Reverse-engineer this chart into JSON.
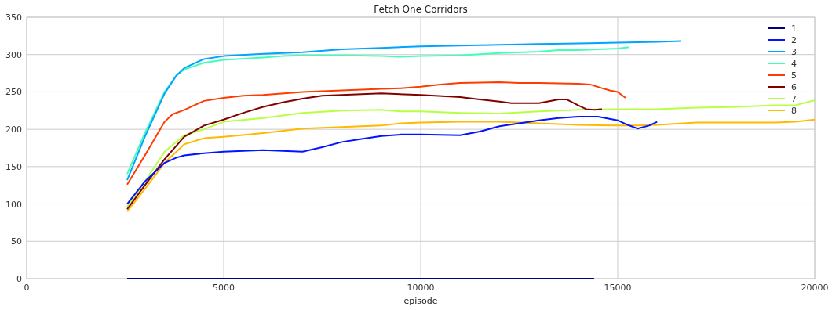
{
  "chart_data": {
    "type": "line",
    "title": "Fetch One Corridors",
    "xlabel": "episode",
    "xlim": [
      0,
      20000
    ],
    "xticks": [
      0,
      5000,
      10000,
      15000,
      20000
    ],
    "ylim": [
      0,
      350
    ],
    "yticks": [
      0,
      50,
      100,
      150,
      200,
      250,
      300,
      350
    ],
    "grid": true,
    "legend": "top right",
    "marker": "none",
    "line_style": "solid",
    "series": [
      {
        "name": "1",
        "color": "#000080",
        "x": [
          2550,
          5000,
          8000,
          11000,
          13500,
          14400
        ],
        "values": [
          0,
          0,
          0,
          0,
          0,
          0
        ]
      },
      {
        "name": "2",
        "color": "#0014ff",
        "x": [
          2550,
          3000,
          3500,
          3800,
          4000,
          4500,
          5000,
          6000,
          7000,
          7500,
          8000,
          8500,
          9000,
          9500,
          10000,
          11000,
          11500,
          12000,
          12500,
          13000,
          13500,
          14000,
          14500,
          15000,
          15200,
          15500,
          15800,
          16000
        ],
        "values": [
          100,
          130,
          155,
          162,
          165,
          168,
          170,
          172,
          170,
          176,
          183,
          187,
          191,
          193,
          193,
          192,
          197,
          204,
          208,
          212,
          215,
          217,
          217,
          212,
          207,
          201,
          205,
          210
        ]
      },
      {
        "name": "3",
        "color": "#00a4ff",
        "x": [
          2550,
          3000,
          3500,
          3800,
          4000,
          4500,
          5000,
          6000,
          7000,
          8000,
          9000,
          10000,
          11000,
          12000,
          13000,
          14000,
          15000,
          16000,
          16600
        ],
        "values": [
          132,
          190,
          248,
          272,
          282,
          294,
          298,
          301,
          303,
          307,
          309,
          311,
          312,
          313,
          314,
          315,
          316,
          317,
          318
        ]
      },
      {
        "name": "4",
        "color": "#40ffb7",
        "x": [
          2550,
          3000,
          3500,
          3800,
          4000,
          4500,
          5000,
          6000,
          6500,
          7000,
          8000,
          9000,
          9500,
          10000,
          11000,
          12000,
          13000,
          13500,
          14000,
          14500,
          15000,
          15300
        ],
        "values": [
          140,
          195,
          250,
          272,
          280,
          289,
          293,
          296,
          298,
          299,
          299,
          298,
          297,
          298,
          299,
          302,
          304,
          306,
          306,
          307,
          308,
          310
        ]
      },
      {
        "name": "5",
        "color": "#ff3b00",
        "x": [
          2550,
          3000,
          3500,
          3700,
          4000,
          4500,
          5000,
          5500,
          6000,
          7000,
          8000,
          9000,
          9500,
          10000,
          10500,
          11000,
          12000,
          12500,
          13000,
          14000,
          14300,
          14600,
          14800,
          15000,
          15200
        ],
        "values": [
          126,
          165,
          210,
          220,
          226,
          238,
          242,
          245,
          246,
          250,
          252,
          254,
          255,
          257,
          260,
          262,
          263,
          262,
          262,
          261,
          260,
          255,
          252,
          250,
          242
        ]
      },
      {
        "name": "6",
        "color": "#800000",
        "x": [
          2550,
          3000,
          3500,
          4000,
          4500,
          5000,
          5500,
          6000,
          6500,
          7000,
          7500,
          8000,
          8500,
          9000,
          10000,
          11000,
          11500,
          12000,
          12300,
          13000,
          13500,
          13700,
          14000,
          14200,
          14400,
          14600
        ],
        "values": [
          93,
          125,
          160,
          190,
          205,
          213,
          222,
          230,
          236,
          241,
          245,
          246,
          247,
          248,
          246,
          243,
          240,
          237,
          235,
          235,
          240,
          240,
          232,
          227,
          226,
          227
        ]
      },
      {
        "name": "7",
        "color": "#b7ff40",
        "x": [
          2550,
          3000,
          3500,
          4000,
          4500,
          5000,
          6000,
          7000,
          8000,
          9000,
          9500,
          10000,
          11000,
          12000,
          13000,
          14000,
          15000,
          16000,
          17000,
          18000,
          19000,
          19500,
          20000
        ],
        "values": [
          96,
          130,
          170,
          192,
          200,
          210,
          215,
          222,
          225,
          226,
          224,
          224,
          222,
          221,
          224,
          226,
          227,
          227,
          229,
          230,
          232,
          232,
          239
        ]
      },
      {
        "name": "8",
        "color": "#ffb900",
        "x": [
          2550,
          3000,
          3500,
          4000,
          4500,
          5000,
          6000,
          7000,
          8000,
          9000,
          9500,
          10000,
          11000,
          12000,
          13000,
          14000,
          15000,
          15500,
          16000,
          17000,
          18000,
          19000,
          19500,
          20000
        ],
        "values": [
          90,
          120,
          155,
          180,
          188,
          190,
          195,
          201,
          203,
          205,
          208,
          209,
          210,
          210,
          208,
          206,
          205,
          205,
          206,
          209,
          209,
          209,
          210,
          213
        ]
      }
    ]
  }
}
